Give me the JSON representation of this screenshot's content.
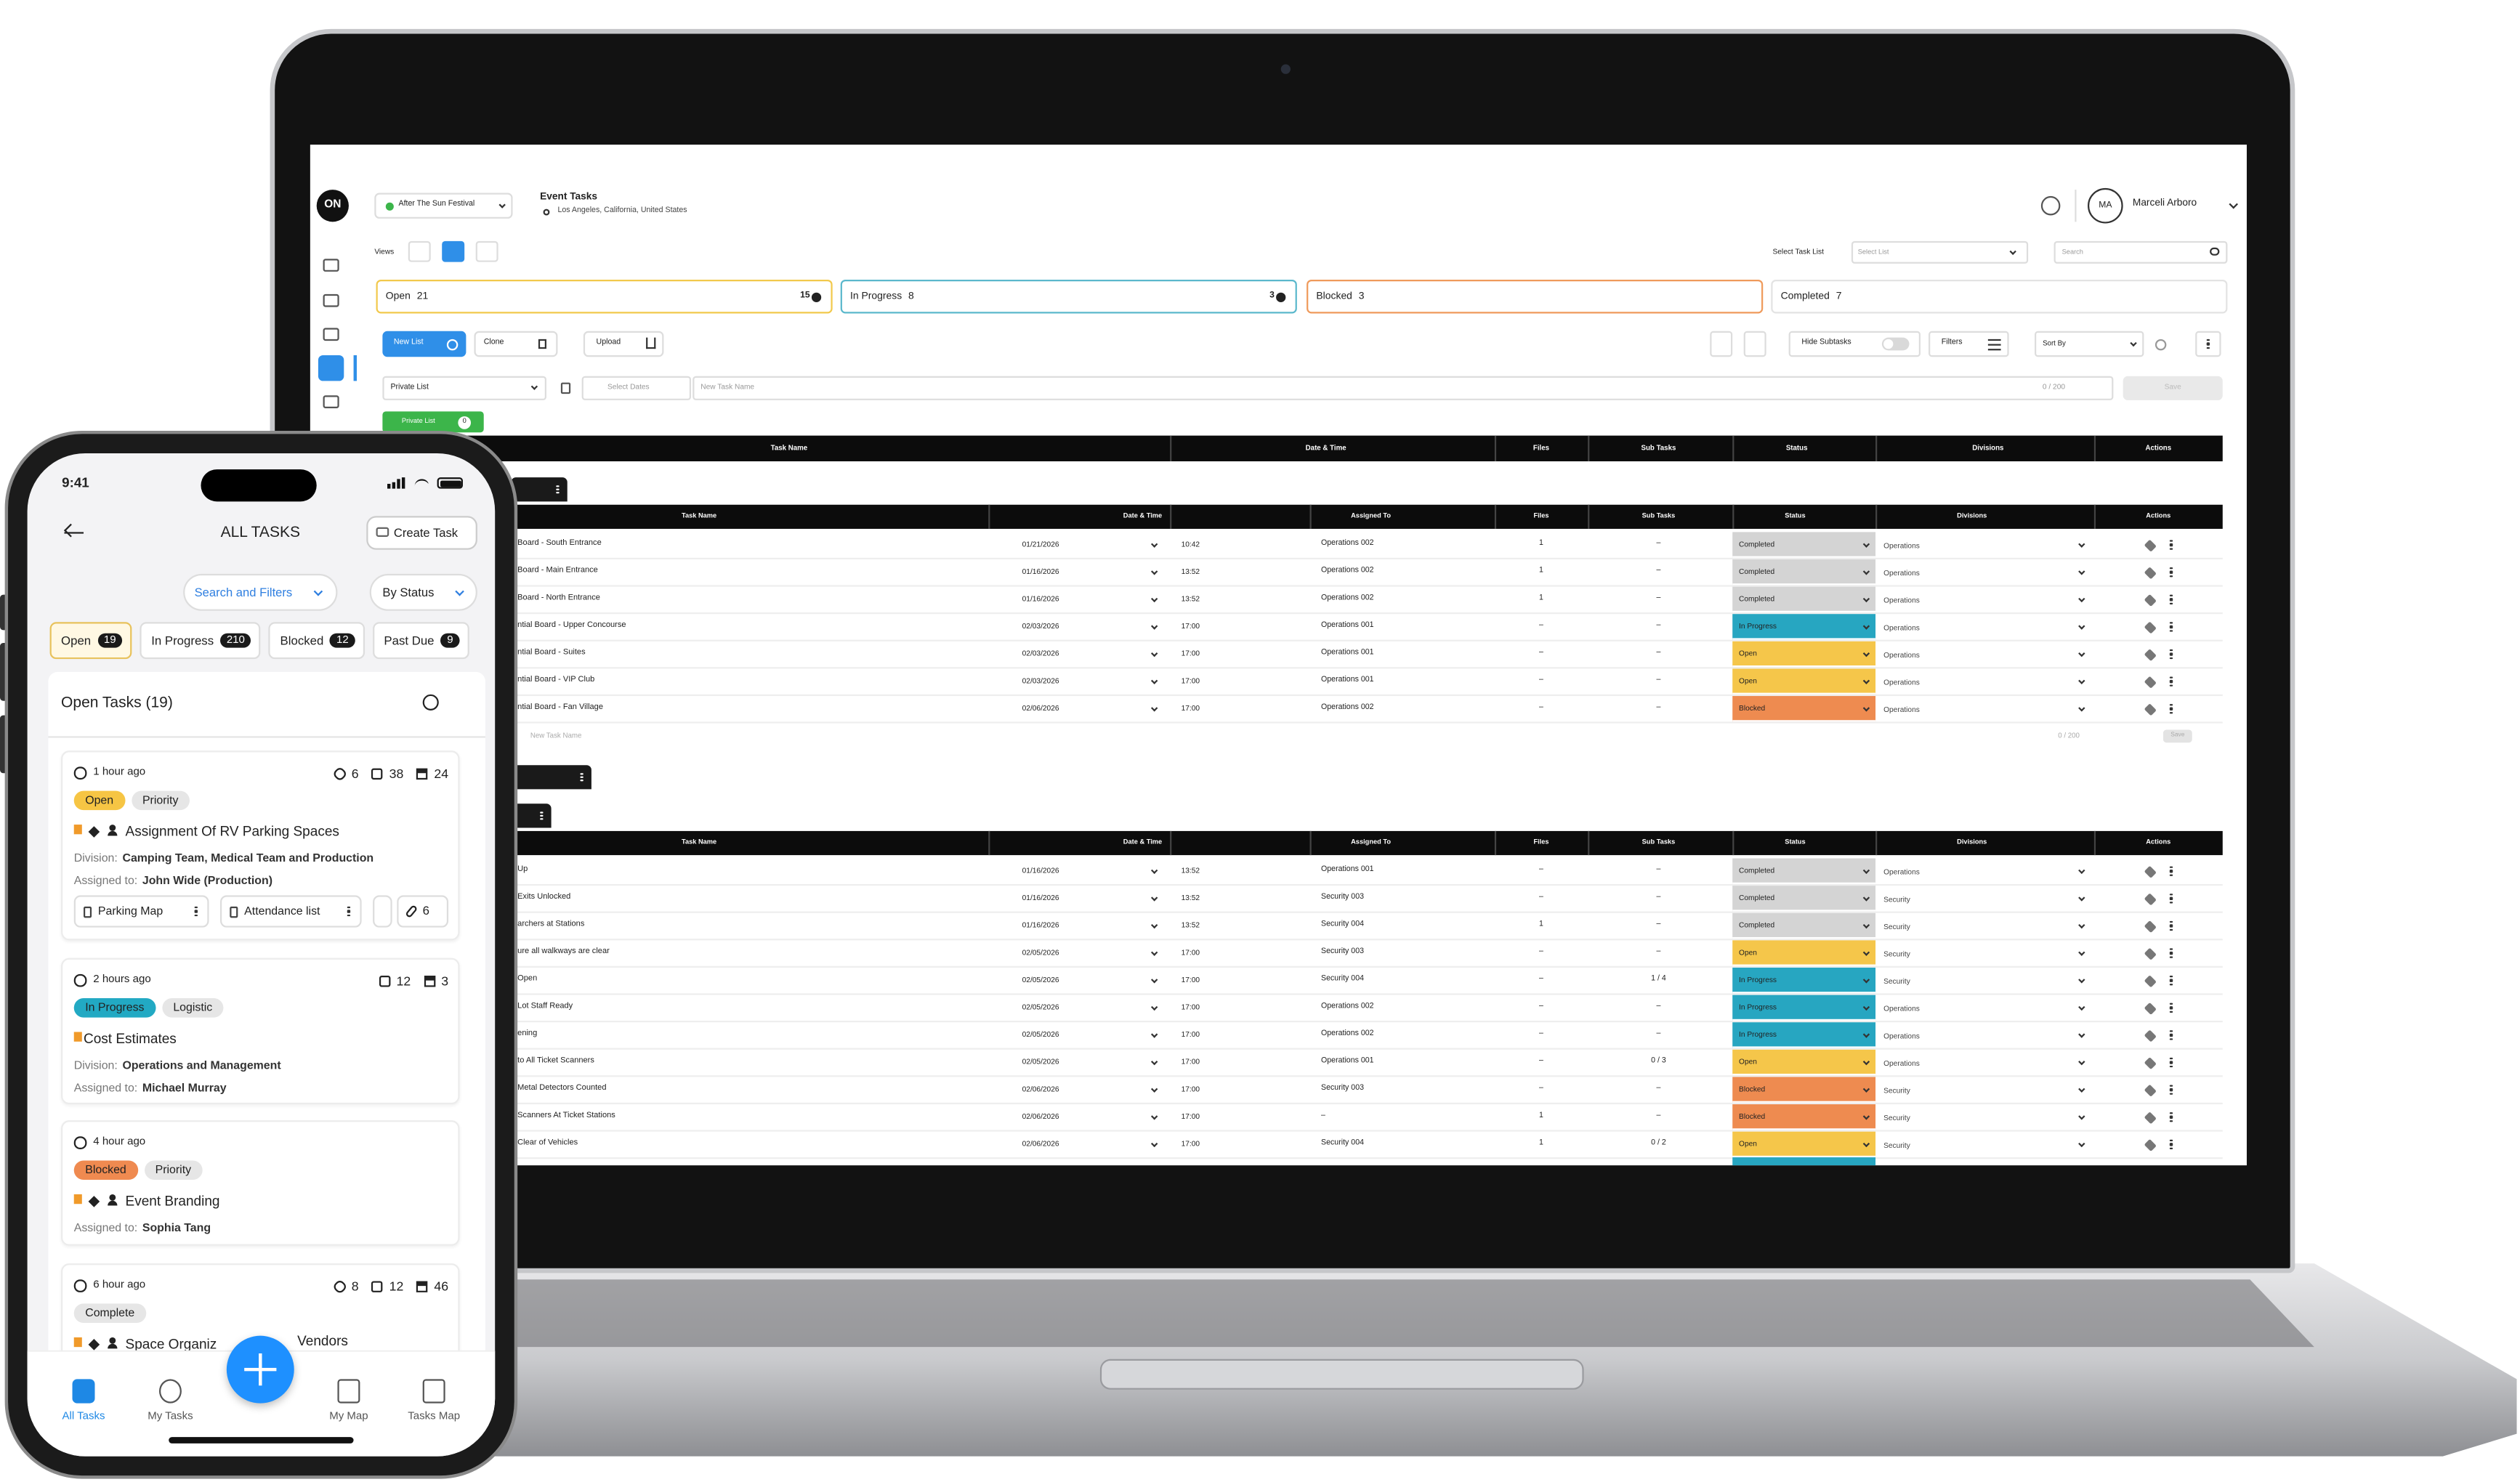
{
  "laptop": {
    "header": {
      "logo": "ON",
      "event": "After The Sun Festival",
      "page_title": "Event Tasks",
      "location": "Los Angeles, California, United States",
      "avatar": "MA",
      "user": "Marceli Arboro"
    },
    "toolbar": {
      "views": "Views",
      "select_task_list": "Select Task List",
      "select_list": "Select List",
      "search": "Search"
    },
    "status_cards": [
      {
        "label": "Open",
        "count": "21",
        "badge": "15",
        "color": "#f2c94c"
      },
      {
        "label": "In Progress",
        "count": "8",
        "badge": "3",
        "color": "#5bb8cc"
      },
      {
        "label": "Blocked",
        "count": "3",
        "color": "#ef9a5b"
      },
      {
        "label": "Completed",
        "count": "7",
        "color": "#e3e3e3"
      }
    ],
    "actions": {
      "new_list": "New List",
      "clone": "Clone",
      "upload": "Upload",
      "hide_subtasks": "Hide Subtasks",
      "filters": "Filters",
      "sort_by": "Sort By"
    },
    "new_task": {
      "list": "Private List",
      "dates": "Select Dates",
      "name": "New Task Name",
      "counter": "0 / 200",
      "save": "Save"
    },
    "tag": {
      "label": "Private List",
      "count": "0"
    },
    "header_row": [
      "Task Name",
      "Date & Time",
      "Files",
      "Sub Tasks",
      "Status",
      "Divisions",
      "Actions"
    ],
    "groups": [
      {
        "columns": [
          "Task Name",
          "Date & Time",
          "Assigned To",
          "Files",
          "Sub Tasks",
          "Status",
          "Divisions",
          "Actions"
        ],
        "rows": [
          {
            "name": "Board - South Entrance",
            "date": "01/21/2026",
            "time": "10:42",
            "assigned": "Operations 002",
            "files": "1",
            "subtasks": "–",
            "status": "Completed",
            "status_color": "#d4d4d4",
            "division": "Operations"
          },
          {
            "name": "Board - Main Entrance",
            "date": "01/16/2026",
            "time": "13:52",
            "assigned": "Operations 002",
            "files": "1",
            "subtasks": "–",
            "status": "Completed",
            "status_color": "#d4d4d4",
            "division": "Operations"
          },
          {
            "name": "Board - North Entrance",
            "date": "01/16/2026",
            "time": "13:52",
            "assigned": "Operations 002",
            "files": "1",
            "subtasks": "–",
            "status": "Completed",
            "status_color": "#d4d4d4",
            "division": "Operations"
          },
          {
            "name": "ntial Board - Upper Concourse",
            "date": "02/03/2026",
            "time": "17:00",
            "assigned": "Operations 001",
            "files": "–",
            "subtasks": "–",
            "status": "In Progress",
            "status_color": "#27a6c1",
            "division": "Operations"
          },
          {
            "name": "ntial Board - Suites",
            "date": "02/03/2026",
            "time": "17:00",
            "assigned": "Operations 001",
            "files": "–",
            "subtasks": "–",
            "status": "Open",
            "status_color": "#f5c64a",
            "division": "Operations"
          },
          {
            "name": "ntial Board - VIP Club",
            "date": "02/03/2026",
            "time": "17:00",
            "assigned": "Operations 001",
            "files": "–",
            "subtasks": "–",
            "status": "Open",
            "status_color": "#f5c64a",
            "division": "Operations"
          },
          {
            "name": "ntial Board - Fan Village",
            "date": "02/06/2026",
            "time": "17:00",
            "assigned": "Operations 002",
            "files": "–",
            "subtasks": "–",
            "status": "Blocked",
            "status_color": "#ee8b50",
            "division": "Operations"
          }
        ],
        "footer": {
          "name": "New Task Name",
          "counter": "0 / 200",
          "save": "Save"
        }
      },
      {
        "columns": [
          "Task Name",
          "Date & Time",
          "Assigned To",
          "Files",
          "Sub Tasks",
          "Status",
          "Divisions",
          "Actions"
        ],
        "rows": [
          {
            "name": "Up",
            "date": "01/16/2026",
            "time": "13:52",
            "assigned": "Operations 001",
            "files": "–",
            "subtasks": "–",
            "status": "Completed",
            "status_color": "#d4d4d4",
            "division": "Operations"
          },
          {
            "name": "Exits Unlocked",
            "date": "01/16/2026",
            "time": "13:52",
            "assigned": "Security 003",
            "files": "–",
            "subtasks": "–",
            "status": "Completed",
            "status_color": "#d4d4d4",
            "division": "Security"
          },
          {
            "name": "archers at Stations",
            "date": "01/16/2026",
            "time": "13:52",
            "assigned": "Security 004",
            "files": "1",
            "subtasks": "–",
            "status": "Completed",
            "status_color": "#d4d4d4",
            "division": "Security"
          },
          {
            "name": "ure all walkways are clear",
            "date": "02/05/2026",
            "time": "17:00",
            "assigned": "Security 003",
            "files": "–",
            "subtasks": "–",
            "status": "Open",
            "status_color": "#f5c64a",
            "division": "Security"
          },
          {
            "name": "Open",
            "date": "02/05/2026",
            "time": "17:00",
            "assigned": "Security 004",
            "files": "–",
            "subtasks": "1 / 4",
            "status": "In Progress",
            "status_color": "#27a6c1",
            "division": "Security"
          },
          {
            "name": "Lot Staff Ready",
            "date": "02/05/2026",
            "time": "17:00",
            "assigned": "Operations 002",
            "files": "–",
            "subtasks": "–",
            "status": "In Progress",
            "status_color": "#27a6c1",
            "division": "Operations"
          },
          {
            "name": "ening",
            "date": "02/05/2026",
            "time": "17:00",
            "assigned": "Operations 002",
            "files": "–",
            "subtasks": "–",
            "status": "In Progress",
            "status_color": "#27a6c1",
            "division": "Operations"
          },
          {
            "name": "to All Ticket Scanners",
            "date": "02/05/2026",
            "time": "17:00",
            "assigned": "Operations 001",
            "files": "–",
            "subtasks": "0 / 3",
            "status": "Open",
            "status_color": "#f5c64a",
            "division": "Operations"
          },
          {
            "name": "Metal Detectors Counted",
            "date": "02/06/2026",
            "time": "17:00",
            "assigned": "Security 003",
            "files": "–",
            "subtasks": "–",
            "status": "Blocked",
            "status_color": "#ee8b50",
            "division": "Security"
          },
          {
            "name": "Scanners At Ticket Stations",
            "date": "02/06/2026",
            "time": "17:00",
            "assigned": "–",
            "files": "1",
            "subtasks": "–",
            "status": "Blocked",
            "status_color": "#ee8b50",
            "division": "Security"
          },
          {
            "name": "Clear of Vehicles",
            "date": "02/06/2026",
            "time": "17:00",
            "assigned": "Security 004",
            "files": "1",
            "subtasks": "0 / 2",
            "status": "Open",
            "status_color": "#f5c64a",
            "division": "Security"
          }
        ]
      }
    ]
  },
  "phone": {
    "time": "9:41",
    "title": "ALL TASKS",
    "create": "Create Task",
    "search": "Search and Filters",
    "by_status": "By Status",
    "tabs": [
      {
        "label": "Open",
        "count": "19"
      },
      {
        "label": "In Progress",
        "count": "210"
      },
      {
        "label": "Blocked",
        "count": "12"
      },
      {
        "label": "Past Due",
        "count": "9"
      }
    ],
    "list_title": "Open Tasks (19)",
    "cards": [
      {
        "time": "1 hour ago",
        "stats": [
          {
            "kind": "files",
            "value": "6"
          },
          {
            "kind": "comments",
            "value": "38"
          },
          {
            "kind": "members",
            "value": "24"
          }
        ],
        "tags": [
          {
            "label": "Open",
            "color": "#f6c544"
          },
          {
            "label": "Priority",
            "color": "#e6e6e6"
          }
        ],
        "pinned": true,
        "title": "Assignment Of RV Parking Spaces",
        "lines": [
          {
            "label": "Division:",
            "value": "Camping Team, Medical Team and Production"
          },
          {
            "label": "Assigned to:",
            "value": "John Wide (Production)"
          }
        ],
        "attachments": [
          "Parking Map",
          "Attendance list"
        ],
        "attachment_count": "6"
      },
      {
        "time": "2 hours ago",
        "stats": [
          {
            "kind": "comments",
            "value": "12"
          },
          {
            "kind": "members",
            "value": "3"
          }
        ],
        "tags": [
          {
            "label": "In Progress",
            "color": "#22a9c3"
          },
          {
            "label": "Logistic",
            "color": "#e6e6e6"
          }
        ],
        "pinned": false,
        "title": "Cost Estimates",
        "lines": [
          {
            "label": "Division:",
            "value": "Operations and Management"
          },
          {
            "label": "Assigned to:",
            "value": "Michael Murray"
          }
        ]
      },
      {
        "time": "4 hour ago",
        "stats": [],
        "tags": [
          {
            "label": "Blocked",
            "color": "#ef8a50"
          },
          {
            "label": "Priority",
            "color": "#e6e6e6"
          }
        ],
        "pinned": true,
        "title": "Event Branding",
        "lines": [
          {
            "label": "Assigned to:",
            "value": "Sophia Tang"
          }
        ]
      },
      {
        "time": "6 hour ago",
        "stats": [
          {
            "kind": "files",
            "value": "8"
          },
          {
            "kind": "comments",
            "value": "12"
          },
          {
            "kind": "members",
            "value": "46"
          }
        ],
        "tags": [
          {
            "label": "Complete",
            "color": "#e6e6e6"
          }
        ],
        "pinned": true,
        "title": "Space Organiz",
        "title_end": "Vendors",
        "lines": []
      }
    ],
    "nav": [
      "All Tasks",
      "My Tasks",
      "My Map",
      "Tasks Map"
    ]
  }
}
